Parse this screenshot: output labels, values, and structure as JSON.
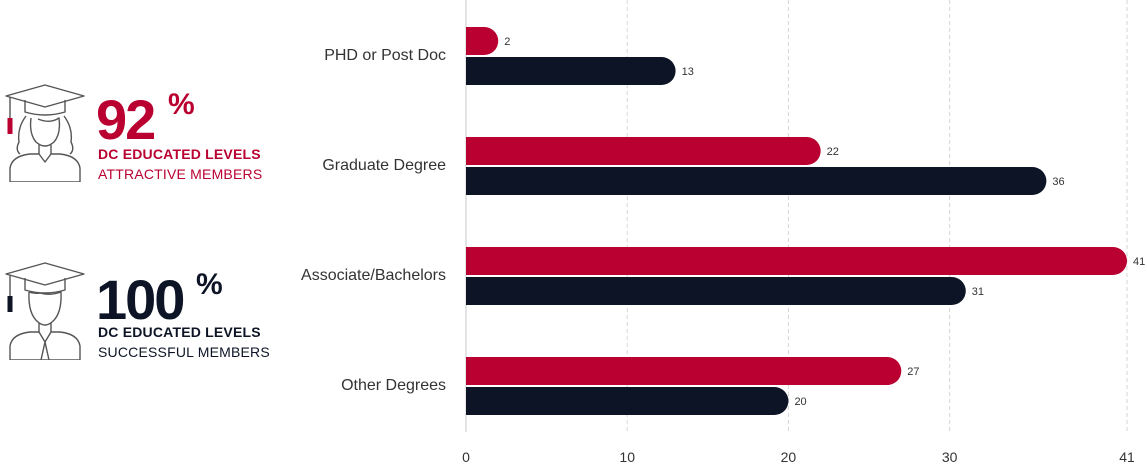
{
  "colors": {
    "accent": "#b90030",
    "dark": "#0c1426",
    "grid": "#d6d6d6",
    "text": "#333333",
    "icon": "#555555"
  },
  "stats": [
    {
      "value": "92",
      "unit": "%",
      "line1": "DC EDUCATED LEVELS",
      "line2": "ATTRACTIVE MEMBERS",
      "color": "#b90030",
      "icon": "graduate-woman-icon"
    },
    {
      "value": "100",
      "unit": "%",
      "line1": "DC EDUCATED LEVELS",
      "line2": "SUCCESSFUL MEMBERS",
      "color": "#0c1426",
      "icon": "graduate-man-icon"
    }
  ],
  "chart_data": {
    "type": "bar",
    "orientation": "horizontal",
    "categories": [
      "PHD or Post Doc",
      "Graduate Degree",
      "Associate/Bachelors",
      "Other Degrees"
    ],
    "series": [
      {
        "values": [
          2,
          22,
          41,
          27
        ],
        "color": "#b90030"
      },
      {
        "values": [
          13,
          36,
          31,
          20
        ],
        "color": "#0c1426"
      }
    ],
    "xlim": [
      0,
      41
    ],
    "xticks": [
      "0",
      "10",
      "20",
      "30",
      "41"
    ],
    "grid": true
  }
}
